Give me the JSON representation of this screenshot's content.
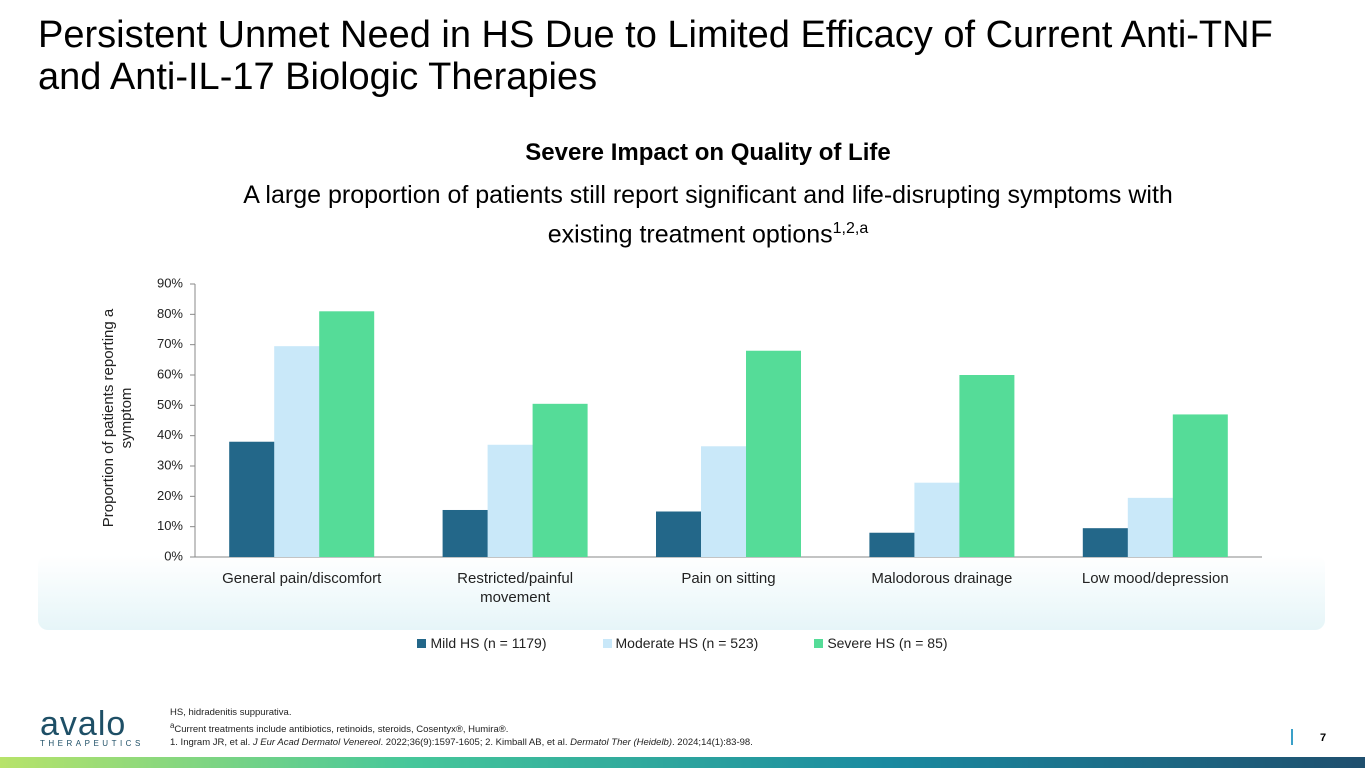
{
  "title": "Persistent Unmet Need in HS Due to Limited Efficacy of Current Anti-TNF and Anti-IL-17 Biologic Therapies",
  "chart_data": {
    "type": "bar",
    "title": "Severe Impact on Quality of Life",
    "subtitle": "A large proportion of patients still report significant and life-disrupting symptoms with existing treatment options",
    "subtitle_superscript": "1,2,a",
    "y_label": "Proportion of patients reporting a symptom",
    "categories": [
      "General pain/discomfort",
      "Restricted/painful movement",
      "Pain on sitting",
      "Malodorous drainage",
      "Low mood/depression"
    ],
    "series": [
      {
        "name": "Mild HS (n = 1179)",
        "color": "#236789",
        "values": [
          38,
          15.5,
          15,
          8,
          9.5
        ]
      },
      {
        "name": "Moderate HS (n = 523)",
        "color": "#c9e8f9",
        "values": [
          69.5,
          37,
          36.5,
          24.5,
          19.5
        ]
      },
      {
        "name": "Severe HS (n = 85)",
        "color": "#55dc98",
        "values": [
          81,
          50.5,
          68,
          60,
          47
        ]
      }
    ],
    "ylim": [
      0,
      90
    ],
    "yticks": [
      {
        "value": 0,
        "label": "0%"
      },
      {
        "value": 10,
        "label": "10%"
      },
      {
        "value": 20,
        "label": "20%"
      },
      {
        "value": 30,
        "label": "30%"
      },
      {
        "value": 40,
        "label": "40%"
      },
      {
        "value": 50,
        "label": "50%"
      },
      {
        "value": 60,
        "label": "60%"
      },
      {
        "value": 70,
        "label": "70%"
      },
      {
        "value": 80,
        "label": "80%"
      },
      {
        "value": 90,
        "label": "90%"
      }
    ],
    "grid": false,
    "legend": "bottom"
  },
  "footnotes": {
    "abbreviation": "HS, hidradenitis suppurativa.",
    "note_marker": "a",
    "note": "Current treatments include antibiotics, retinoids, steroids, Cosentyx®, Humira®.",
    "references": [
      "1. Ingram JR, et al. ",
      "J Eur Acad Dermatol Venereol",
      ". 2022;36(9):1597-1605; 2. Kimball AB, et al. ",
      "Dermatol Ther (Heidelb)",
      ". 2024;14(1):83-98."
    ]
  },
  "logo": {
    "name": "avalo",
    "tagline": "THERAPEUTICS"
  },
  "page_number": "7"
}
